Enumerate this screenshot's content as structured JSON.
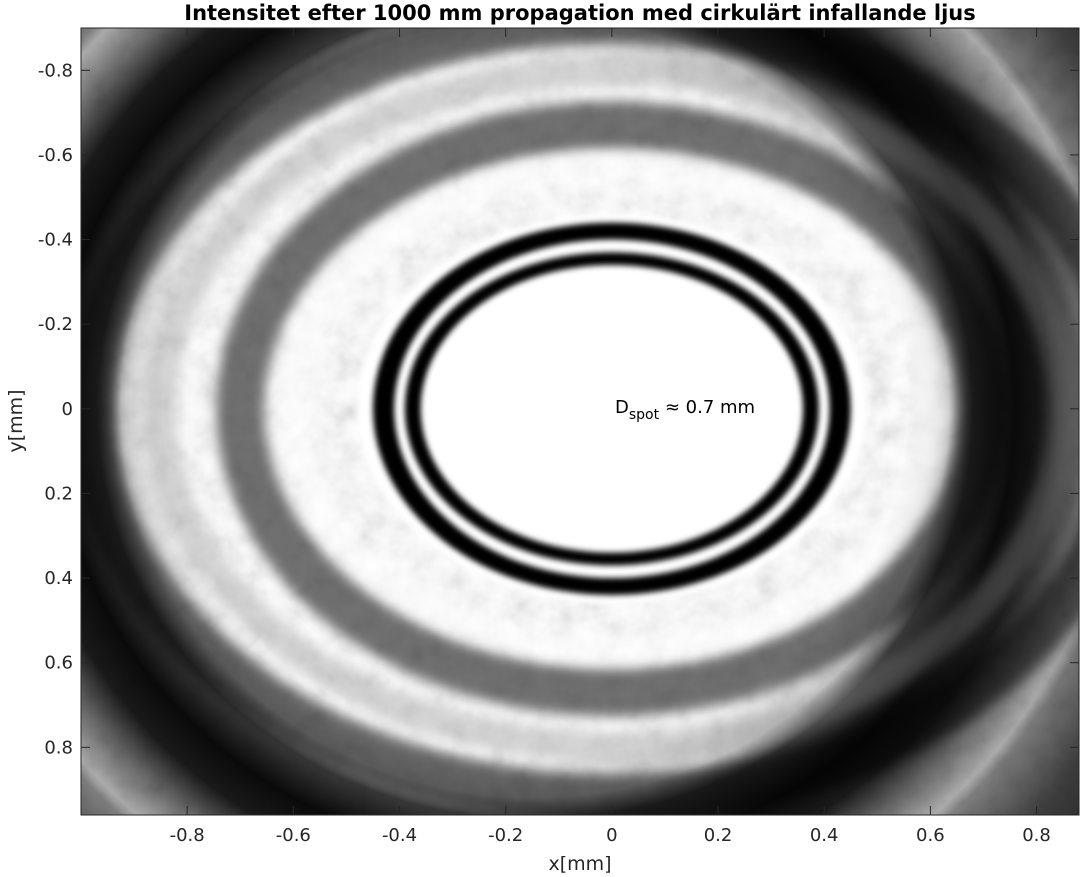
{
  "chart_data": {
    "type": "heatmap",
    "title": "Intensitet efter 1000 mm propagation med cirkulärt infallande ljus",
    "xlabel": "x[mm]",
    "ylabel": "y[mm]",
    "xlim": [
      -1.0,
      0.88
    ],
    "ylim": [
      -0.9,
      0.96
    ],
    "y_direction": "reversed",
    "colormap": "gray",
    "x_ticks": [
      -0.8,
      -0.6,
      -0.4,
      -0.2,
      0,
      0.2,
      0.4,
      0.6,
      0.8
    ],
    "y_ticks": [
      -0.8,
      -0.6,
      -0.4,
      -0.2,
      0,
      0.2,
      0.4,
      0.6,
      0.8
    ],
    "x_tick_labels": [
      "-0.8",
      "-0.6",
      "-0.4",
      "-0.2",
      "0",
      "0.2",
      "0.4",
      "0.6",
      "0.8"
    ],
    "y_tick_labels": [
      "-0.8",
      "-0.6",
      "-0.4",
      "-0.2",
      "0",
      "0.2",
      "0.4",
      "0.6",
      "0.8"
    ],
    "pattern": {
      "center": [
        0,
        0
      ],
      "rings": [
        {
          "level": "bright",
          "radius_x": 0.48,
          "radius_y": 0.46
        },
        {
          "level": "dark",
          "radius_x": 0.45,
          "radius_y": 0.44
        },
        {
          "level": "bright",
          "radius_x": 0.41,
          "radius_y": 0.4
        },
        {
          "level": "dark",
          "radius_x": 0.39,
          "radius_y": 0.37
        },
        {
          "level": "bright",
          "radius_x": 0.36,
          "radius_y": 0.34
        }
      ],
      "outer_rings": [
        {
          "level": "dark",
          "radius_x": 0.98,
          "radius_y": 0.92
        },
        {
          "level": "speckle",
          "radius_x": 0.85,
          "radius_y": 0.8
        },
        {
          "level": "dark",
          "radius_x": 0.7,
          "radius_y": 0.67
        },
        {
          "level": "bright",
          "radius_x": 0.6,
          "radius_y": 0.57
        }
      ]
    },
    "annotations": [
      {
        "text": "D",
        "subscript": "spot",
        "suffix": " ≈ 0.7 mm",
        "x": 0,
        "y": 0
      }
    ]
  }
}
